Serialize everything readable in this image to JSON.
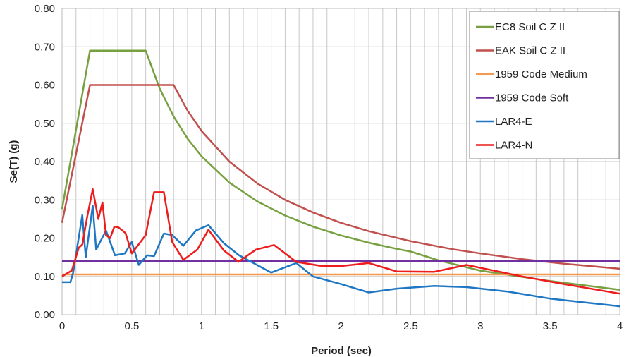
{
  "chart_data": {
    "type": "line",
    "title": "",
    "xlabel": "Period (sec)",
    "ylabel": "Se(T) (g)",
    "xlim": [
      0,
      4
    ],
    "ylim": [
      0,
      0.8
    ],
    "xticks": [
      "0",
      "0.5",
      "1",
      "1.5",
      "2",
      "2.5",
      "3",
      "3.5",
      "4"
    ],
    "xtick_values": [
      0,
      0.5,
      1,
      1.5,
      2,
      2.5,
      3,
      3.5,
      4
    ],
    "yticks": [
      "0.00",
      "0.10",
      "0.20",
      "0.30",
      "0.40",
      "0.50",
      "0.60",
      "0.70",
      "0.80"
    ],
    "ytick_values": [
      0,
      0.1,
      0.2,
      0.3,
      0.4,
      0.5,
      0.6,
      0.7,
      0.8
    ],
    "grid": true,
    "minor_x_grid_step": 0.1,
    "legend_position": "top-right",
    "series": [
      {
        "name": "EC8 Soil C Z II",
        "color": "#77a040",
        "x": [
          0,
          0.2,
          0.6,
          0.7,
          0.8,
          0.9,
          1.0,
          1.2,
          1.4,
          1.6,
          1.8,
          2.0,
          2.2,
          2.4,
          2.5,
          2.7,
          3.0,
          3.5,
          4.0
        ],
        "y": [
          0.276,
          0.69,
          0.69,
          0.591,
          0.518,
          0.46,
          0.414,
          0.345,
          0.296,
          0.259,
          0.23,
          0.207,
          0.188,
          0.172,
          0.165,
          0.142,
          0.115,
          0.088,
          0.065
        ]
      },
      {
        "name": "EAK Soil C Z II",
        "color": "#c0504d",
        "x": [
          0,
          0.2,
          0.8,
          0.9,
          1.0,
          1.2,
          1.4,
          1.6,
          1.8,
          2.0,
          2.2,
          2.5,
          2.8,
          3.0,
          3.3,
          3.6,
          4.0
        ],
        "y": [
          0.24,
          0.6,
          0.6,
          0.533,
          0.48,
          0.4,
          0.343,
          0.3,
          0.267,
          0.24,
          0.218,
          0.192,
          0.171,
          0.16,
          0.145,
          0.133,
          0.12
        ]
      },
      {
        "name": "1959 Code Medium",
        "color": "#f39a4e",
        "x": [
          0,
          4
        ],
        "y": [
          0.105,
          0.105
        ]
      },
      {
        "name": "1959 Code Soft",
        "color": "#7030a0",
        "x": [
          0,
          4
        ],
        "y": [
          0.14,
          0.14
        ]
      },
      {
        "name": "LAR4-E",
        "color": "#1f77c4",
        "x": [
          0,
          0.06,
          0.08,
          0.145,
          0.17,
          0.22,
          0.245,
          0.315,
          0.38,
          0.45,
          0.5,
          0.55,
          0.61,
          0.66,
          0.73,
          0.79,
          0.87,
          0.96,
          1.05,
          1.16,
          1.27,
          1.5,
          1.68,
          1.8,
          2.0,
          2.2,
          2.4,
          2.67,
          2.9,
          3.2,
          3.5,
          4.0
        ],
        "y": [
          0.085,
          0.085,
          0.11,
          0.26,
          0.15,
          0.285,
          0.17,
          0.22,
          0.155,
          0.16,
          0.19,
          0.13,
          0.155,
          0.153,
          0.212,
          0.208,
          0.18,
          0.22,
          0.234,
          0.187,
          0.155,
          0.11,
          0.135,
          0.1,
          0.08,
          0.058,
          0.068,
          0.075,
          0.072,
          0.06,
          0.042,
          0.022
        ]
      },
      {
        "name": "LAR4-N",
        "color": "#ee1c1c",
        "x": [
          0,
          0.045,
          0.07,
          0.095,
          0.12,
          0.145,
          0.18,
          0.22,
          0.26,
          0.29,
          0.315,
          0.345,
          0.375,
          0.405,
          0.455,
          0.5,
          0.6,
          0.66,
          0.73,
          0.79,
          0.87,
          0.97,
          1.05,
          1.16,
          1.265,
          1.39,
          1.52,
          1.68,
          1.85,
          2.0,
          2.2,
          2.4,
          2.67,
          2.9,
          3.3,
          3.6,
          4.0
        ],
        "y": [
          0.1,
          0.11,
          0.115,
          0.145,
          0.175,
          0.183,
          0.255,
          0.328,
          0.25,
          0.293,
          0.208,
          0.2,
          0.23,
          0.228,
          0.213,
          0.16,
          0.208,
          0.32,
          0.32,
          0.19,
          0.143,
          0.17,
          0.222,
          0.168,
          0.138,
          0.17,
          0.182,
          0.138,
          0.128,
          0.127,
          0.135,
          0.113,
          0.112,
          0.13,
          0.1,
          0.08,
          0.055
        ]
      }
    ]
  }
}
